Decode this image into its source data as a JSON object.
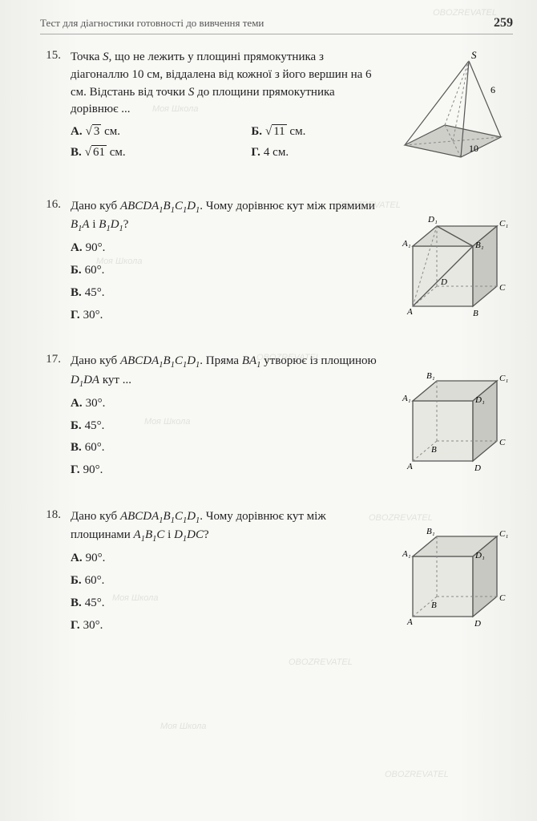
{
  "header": {
    "title": "Тест для діагностики готовності до вивчення теми",
    "page_number": "259"
  },
  "problems": [
    {
      "num": "15.",
      "text_html": "Точка <span class='ital'>S</span>, що не лежить у площині прямокутника з діагоналлю 10 см, віддалена від кожної з його вершин на 6 см. Відстань від точки <span class='ital'>S</span> до площини прямокутника дорівнює ...",
      "answers_layout": "grid",
      "answers": [
        {
          "label": "А.",
          "val": "<span class='sqrt'><span class='rad'>3</span></span> см."
        },
        {
          "label": "Б.",
          "val": "<span class='sqrt'><span class='rad'>11</span></span> см."
        },
        {
          "label": "В.",
          "val": "<span class='sqrt'><span class='rad'>61</span></span> см."
        },
        {
          "label": "Г.",
          "val": "4 см."
        }
      ],
      "fig_labels": {
        "S": "S",
        "six": "6",
        "ten": "10"
      }
    },
    {
      "num": "16.",
      "text_html": "Дано куб <span class='ital'>ABCDA<span class='sub'>1</span>B<span class='sub'>1</span>C<span class='sub'>1</span>D<span class='sub'>1</span></span>. Чому дорівнює кут між прямими <span class='ital'>B<span class='sub'>1</span>A</span> і <span class='ital'>B<span class='sub'>1</span>D<span class='sub'>1</span></span>?",
      "answers_layout": "single",
      "answers": [
        {
          "label": "А.",
          "val": "90°."
        },
        {
          "label": "Б.",
          "val": "60°."
        },
        {
          "label": "В.",
          "val": "45°."
        },
        {
          "label": "Г.",
          "val": "30°."
        }
      ],
      "fig_labels": {
        "A": "A",
        "B": "B",
        "C": "C",
        "D": "D",
        "A1": "A₁",
        "B1": "B₁",
        "C1": "C₁",
        "D1": "D₁"
      }
    },
    {
      "num": "17.",
      "text_html": "Дано куб <span class='ital'>ABCDA<span class='sub'>1</span>B<span class='sub'>1</span>C<span class='sub'>1</span>D<span class='sub'>1</span></span>. Пряма <span class='ital'>BA<span class='sub'>1</span></span> утворює із площиною <span class='ital'>D<span class='sub'>1</span>DA</span> кут ...",
      "answers_layout": "single",
      "answers": [
        {
          "label": "А.",
          "val": "30°."
        },
        {
          "label": "Б.",
          "val": "45°."
        },
        {
          "label": "В.",
          "val": "60°."
        },
        {
          "label": "Г.",
          "val": "90°."
        }
      ],
      "fig_labels": {
        "A": "A",
        "B": "B",
        "C": "C",
        "D": "D",
        "A1": "A₁",
        "B1": "B₁",
        "C1": "C₁",
        "D1": "D₁"
      }
    },
    {
      "num": "18.",
      "text_html": "Дано куб <span class='ital'>ABCDA<span class='sub'>1</span>B<span class='sub'>1</span>C<span class='sub'>1</span>D<span class='sub'>1</span></span>. Чому дорівнює кут між площинами <span class='ital'>A<span class='sub'>1</span>B<span class='sub'>1</span>C</span> і <span class='ital'>D<span class='sub'>1</span>DC</span>?",
      "answers_layout": "single",
      "answers": [
        {
          "label": "А.",
          "val": "90°."
        },
        {
          "label": "Б.",
          "val": "60°."
        },
        {
          "label": "В.",
          "val": "45°."
        },
        {
          "label": "Г.",
          "val": "30°."
        }
      ],
      "fig_labels": {
        "A": "A",
        "B": "B",
        "C": "C",
        "D": "D",
        "A1": "A₁",
        "B1": "B₁",
        "C1": "C₁",
        "D1": "D₁"
      }
    }
  ],
  "watermarks": {
    "text1": "Моя Школа",
    "text2": "OBOZREVATEL"
  },
  "colors": {
    "text": "#222222",
    "stroke": "#555555",
    "fill": "#cfcfca",
    "dash": "#888888"
  }
}
